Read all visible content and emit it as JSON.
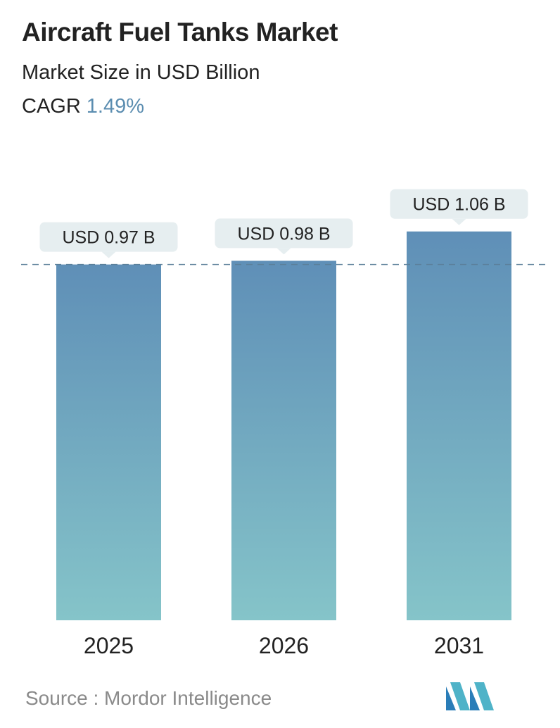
{
  "header": {
    "title": "Aircraft Fuel Tanks Market",
    "subtitle": "Market Size in USD Billion",
    "cagr_label": "CAGR",
    "cagr_value": "1.49%"
  },
  "chart_data": {
    "type": "bar",
    "title": "Aircraft Fuel Tanks Market",
    "subtitle": "Market Size in USD Billion",
    "categories": [
      "2025",
      "2026",
      "2031"
    ],
    "values": [
      0.97,
      0.98,
      1.06
    ],
    "data_labels": [
      "USD 0.97 B",
      "USD 0.98 B",
      "USD 1.06 B"
    ],
    "xlabel": "",
    "ylabel": "",
    "reference_line": 0.97,
    "grid": false,
    "legend": "none",
    "colors": {
      "bar_top": "#5f8fb7",
      "bar_bottom": "#85c4c9",
      "label_bg": "#e6eef0",
      "reference_line": "#5b7f99",
      "axis_text": "#222222"
    }
  },
  "footer": {
    "source": "Source :  Mordor Intelligence",
    "logo_icon": "mordor-intelligence-logo-icon"
  }
}
